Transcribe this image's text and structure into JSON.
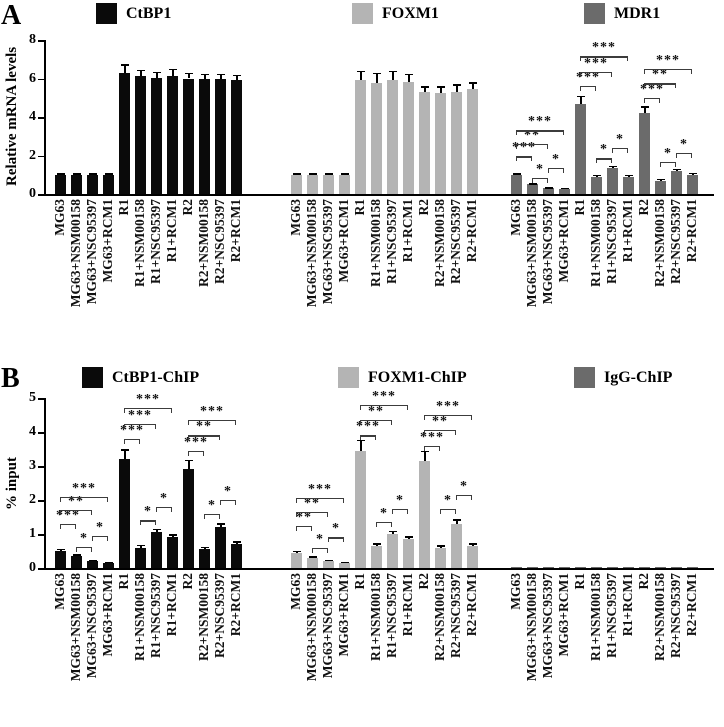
{
  "chart_data": [
    {
      "type": "bar",
      "panel_label": "A",
      "ylabel": "Relative mRNA levels",
      "ylim": [
        0,
        8
      ],
      "y_ticks": [
        0,
        2,
        4,
        6,
        8
      ],
      "grid": false,
      "legend_position": "top",
      "categories": [
        "MG63",
        "MG63+NSM00158",
        "MG63+NSC95397",
        "MG63+RCM1",
        "R1",
        "R1+NSM00158",
        "R1+NSC95397",
        "R1+RCM1",
        "R2",
        "R2+NSM00158",
        "R2+NSC95397",
        "R2+RCM1"
      ],
      "series": [
        {
          "name": "CtBP1",
          "color": "#0a0a0a",
          "values": [
            1.0,
            1.0,
            1.0,
            1.0,
            6.3,
            6.15,
            6.05,
            6.15,
            6.0,
            5.95,
            6.0,
            5.9
          ],
          "errors": [
            0.07,
            0.07,
            0.07,
            0.07,
            0.45,
            0.3,
            0.3,
            0.35,
            0.3,
            0.3,
            0.25,
            0.3
          ]
        },
        {
          "name": "FOXM1",
          "color": "#b4b4b4",
          "values": [
            1.0,
            1.0,
            1.0,
            1.0,
            5.9,
            5.75,
            5.9,
            5.8,
            5.3,
            5.25,
            5.3,
            5.45
          ],
          "errors": [
            0.07,
            0.07,
            0.07,
            0.07,
            0.5,
            0.55,
            0.5,
            0.45,
            0.3,
            0.35,
            0.4,
            0.35
          ]
        },
        {
          "name": "MDR1",
          "color": "#6b6b6b",
          "values": [
            1.0,
            0.5,
            0.3,
            0.28,
            4.7,
            0.9,
            1.35,
            0.9,
            4.2,
            0.7,
            1.2,
            1.0
          ],
          "errors": [
            0.08,
            0.06,
            0.05,
            0.05,
            0.4,
            0.1,
            0.12,
            0.1,
            0.35,
            0.08,
            0.12,
            0.1
          ]
        }
      ],
      "annotations": [
        {
          "cluster": 2,
          "a": 1,
          "b": 2,
          "label": "*",
          "y": 0.85
        },
        {
          "cluster": 2,
          "a": 2,
          "b": 3,
          "label": "*",
          "y": 1.35
        },
        {
          "cluster": 2,
          "a": 0,
          "b": 1,
          "label": "***",
          "y": 1.95
        },
        {
          "cluster": 2,
          "a": 0,
          "b": 2,
          "label": "**",
          "y": 2.6
        },
        {
          "cluster": 2,
          "a": 0,
          "b": 3,
          "label": "***",
          "y": 3.3
        },
        {
          "cluster": 2,
          "a": 5,
          "b": 6,
          "label": "*",
          "y": 1.85
        },
        {
          "cluster": 2,
          "a": 6,
          "b": 7,
          "label": "*",
          "y": 2.4
        },
        {
          "cluster": 2,
          "a": 4,
          "b": 5,
          "label": "***",
          "y": 5.6
        },
        {
          "cluster": 2,
          "a": 4,
          "b": 6,
          "label": "***",
          "y": 6.35
        },
        {
          "cluster": 2,
          "a": 4,
          "b": 7,
          "label": "***",
          "y": 7.15
        },
        {
          "cluster": 2,
          "a": 9,
          "b": 10,
          "label": "*",
          "y": 1.65
        },
        {
          "cluster": 2,
          "a": 10,
          "b": 11,
          "label": "*",
          "y": 2.15
        },
        {
          "cluster": 2,
          "a": 8,
          "b": 9,
          "label": "***",
          "y": 5.0
        },
        {
          "cluster": 2,
          "a": 8,
          "b": 10,
          "label": "**",
          "y": 5.75
        },
        {
          "cluster": 2,
          "a": 8,
          "b": 11,
          "label": "***",
          "y": 6.5
        }
      ]
    },
    {
      "type": "bar",
      "panel_label": "B",
      "ylabel": "% input",
      "ylim": [
        0,
        5
      ],
      "y_ticks": [
        0,
        1,
        2,
        3,
        4,
        5
      ],
      "grid": false,
      "legend_position": "top",
      "categories": [
        "MG63",
        "MG63+NSM00158",
        "MG63+NSC95397",
        "MG63+RCM1",
        "R1",
        "R1+NSM00158",
        "R1+NSC95397",
        "R1+RCM1",
        "R2",
        "R2+NSM00158",
        "R2+NSC95397",
        "R2+RCM1"
      ],
      "series": [
        {
          "name": "CtBP1-ChIP",
          "color": "#0a0a0a",
          "values": [
            0.5,
            0.35,
            0.2,
            0.15,
            3.2,
            0.6,
            1.05,
            0.9,
            2.9,
            0.55,
            1.2,
            0.7
          ],
          "errors": [
            0.06,
            0.05,
            0.04,
            0.03,
            0.3,
            0.08,
            0.1,
            0.09,
            0.28,
            0.07,
            0.12,
            0.08
          ]
        },
        {
          "name": "FOXM1-ChIP",
          "color": "#b4b4b4",
          "values": [
            0.45,
            0.3,
            0.2,
            0.15,
            3.45,
            0.65,
            1.0,
            0.85,
            3.15,
            0.6,
            1.3,
            0.65
          ],
          "errors": [
            0.06,
            0.05,
            0.04,
            0.03,
            0.32,
            0.08,
            0.1,
            0.09,
            0.3,
            0.07,
            0.13,
            0.08
          ]
        },
        {
          "name": "IgG-ChIP",
          "color": "#6b6b6b",
          "values": [
            0.03,
            0.03,
            0.03,
            0.03,
            0.03,
            0.03,
            0.03,
            0.03,
            0.03,
            0.03,
            0.03,
            0.03
          ],
          "errors": [
            0,
            0,
            0,
            0,
            0,
            0,
            0,
            0,
            0,
            0,
            0,
            0
          ]
        }
      ],
      "annotations": [
        {
          "cluster": 0,
          "a": 1,
          "b": 2,
          "label": "*",
          "y": 0.62
        },
        {
          "cluster": 0,
          "a": 2,
          "b": 3,
          "label": "*",
          "y": 0.95
        },
        {
          "cluster": 0,
          "a": 0,
          "b": 1,
          "label": "***",
          "y": 1.3
        },
        {
          "cluster": 0,
          "a": 0,
          "b": 2,
          "label": "**",
          "y": 1.7
        },
        {
          "cluster": 0,
          "a": 0,
          "b": 3,
          "label": "***",
          "y": 2.1
        },
        {
          "cluster": 0,
          "a": 5,
          "b": 6,
          "label": "*",
          "y": 1.4
        },
        {
          "cluster": 0,
          "a": 6,
          "b": 7,
          "label": "*",
          "y": 1.8
        },
        {
          "cluster": 0,
          "a": 4,
          "b": 5,
          "label": "***",
          "y": 3.8
        },
        {
          "cluster": 0,
          "a": 4,
          "b": 6,
          "label": "***",
          "y": 4.25
        },
        {
          "cluster": 0,
          "a": 4,
          "b": 7,
          "label": "***",
          "y": 4.7
        },
        {
          "cluster": 0,
          "a": 9,
          "b": 10,
          "label": "*",
          "y": 1.6
        },
        {
          "cluster": 0,
          "a": 10,
          "b": 11,
          "label": "*",
          "y": 2.0
        },
        {
          "cluster": 0,
          "a": 8,
          "b": 9,
          "label": "***",
          "y": 3.45
        },
        {
          "cluster": 0,
          "a": 8,
          "b": 10,
          "label": "**",
          "y": 3.9
        },
        {
          "cluster": 0,
          "a": 8,
          "b": 11,
          "label": "***",
          "y": 4.35
        },
        {
          "cluster": 1,
          "a": 1,
          "b": 2,
          "label": "*",
          "y": 0.6
        },
        {
          "cluster": 1,
          "a": 2,
          "b": 3,
          "label": "*",
          "y": 0.9
        },
        {
          "cluster": 1,
          "a": 0,
          "b": 1,
          "label": "**",
          "y": 1.25
        },
        {
          "cluster": 1,
          "a": 0,
          "b": 2,
          "label": "**",
          "y": 1.65
        },
        {
          "cluster": 1,
          "a": 0,
          "b": 3,
          "label": "***",
          "y": 2.05
        },
        {
          "cluster": 1,
          "a": 5,
          "b": 6,
          "label": "*",
          "y": 1.35
        },
        {
          "cluster": 1,
          "a": 6,
          "b": 7,
          "label": "*",
          "y": 1.75
        },
        {
          "cluster": 1,
          "a": 4,
          "b": 5,
          "label": "***",
          "y": 3.9
        },
        {
          "cluster": 1,
          "a": 4,
          "b": 6,
          "label": "**",
          "y": 4.35
        },
        {
          "cluster": 1,
          "a": 4,
          "b": 7,
          "label": "***",
          "y": 4.8
        },
        {
          "cluster": 1,
          "a": 9,
          "b": 10,
          "label": "*",
          "y": 1.75
        },
        {
          "cluster": 1,
          "a": 10,
          "b": 11,
          "label": "*",
          "y": 2.15
        },
        {
          "cluster": 1,
          "a": 8,
          "b": 9,
          "label": "***",
          "y": 3.6
        },
        {
          "cluster": 1,
          "a": 8,
          "b": 10,
          "label": "**",
          "y": 4.05
        },
        {
          "cluster": 1,
          "a": 8,
          "b": 11,
          "label": "***",
          "y": 4.5
        }
      ]
    }
  ]
}
